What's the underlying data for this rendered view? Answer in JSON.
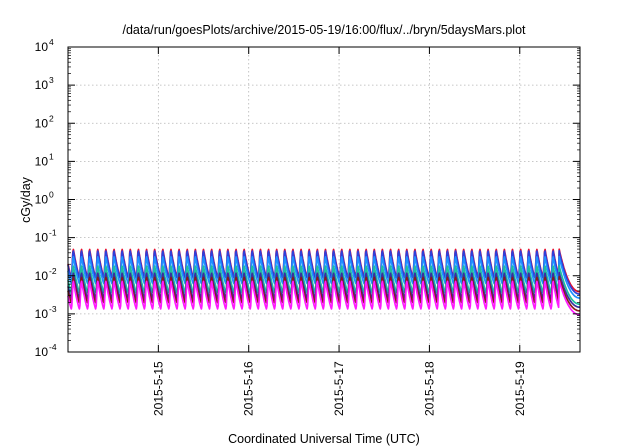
{
  "chart_data": {
    "type": "line",
    "title": "/data/run/goesPlots/archive/2015-05-19/16:00/flux/../bryn/5daysMars.plot",
    "xlabel": "Coordinated Universal Time (UTC)",
    "ylabel": "cGy/day",
    "y_scale": "log",
    "ylim": [
      0.0001,
      10000
    ],
    "y_ticks": [
      {
        "base": "10",
        "exp": "4",
        "value": 10000
      },
      {
        "base": "10",
        "exp": "3",
        "value": 1000
      },
      {
        "base": "10",
        "exp": "2",
        "value": 100
      },
      {
        "base": "10",
        "exp": "1",
        "value": 10
      },
      {
        "base": "10",
        "exp": "0",
        "value": 1
      },
      {
        "base": "10",
        "exp": "-1",
        "value": 0.1
      },
      {
        "base": "10",
        "exp": "-2",
        "value": 0.01
      },
      {
        "base": "10",
        "exp": "-3",
        "value": 0.001
      },
      {
        "base": "10",
        "exp": "-4",
        "value": 0.0001
      }
    ],
    "xlim": [
      "2015-05-14 00:00",
      "2015-05-19 16:00"
    ],
    "x_ticks": [
      {
        "label": "2015-5-15",
        "days": 1
      },
      {
        "label": "2015-5-16",
        "days": 2
      },
      {
        "label": "2015-5-17",
        "days": 3
      },
      {
        "label": "2015-5-18",
        "days": 4
      },
      {
        "label": "2015-5-19",
        "days": 5
      }
    ],
    "grid": true,
    "legend": "none",
    "oscillation_period_days": 0.09,
    "series": [
      {
        "color": "#e8102e",
        "peak": 0.055,
        "trough": 0.009,
        "end": 0.0038
      },
      {
        "color": "#2f3fd9",
        "peak": 0.05,
        "trough": 0.0085,
        "end": 0.0033
      },
      {
        "color": "#1e90ff",
        "peak": 0.035,
        "trough": 0.006,
        "end": 0.0026
      },
      {
        "color": "#1fbf9f",
        "peak": 0.02,
        "trough": 0.0035,
        "end": 0.0018
      },
      {
        "color": "#3a2fa0",
        "peak": 0.013,
        "trough": 0.0025,
        "end": 0.0015
      },
      {
        "color": "#8b1a1a",
        "peak": 0.01,
        "trough": 0.0019,
        "end": 0.0012
      },
      {
        "color": "#ff1aff",
        "peak": 0.008,
        "trough": 0.0013,
        "end": 0.00095
      }
    ]
  }
}
